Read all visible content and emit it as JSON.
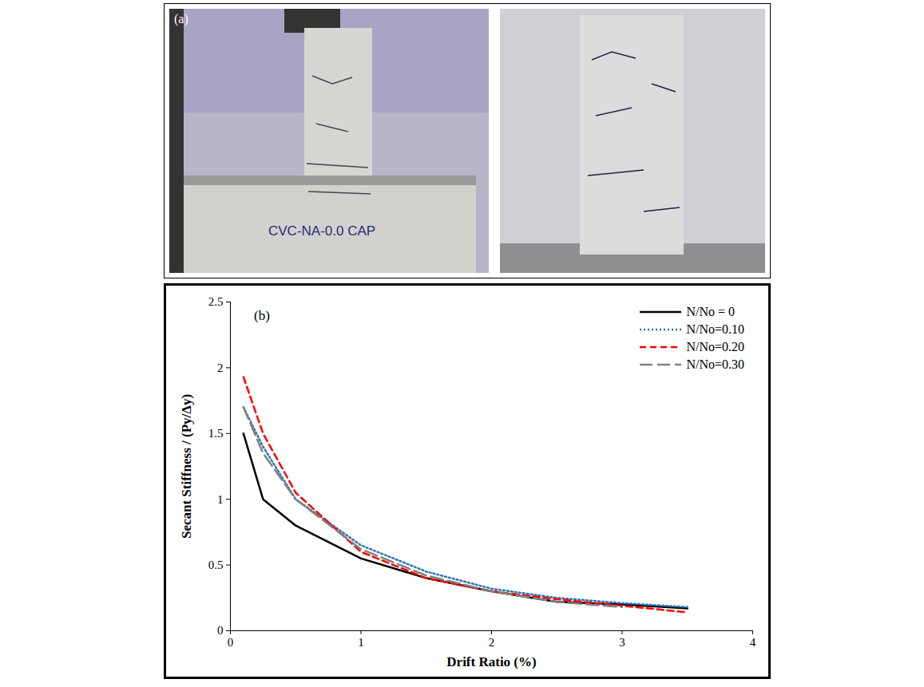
{
  "photos": {
    "label": "(a)",
    "specimen_label": "CVC-NA-0.0 CAP"
  },
  "chart_data": {
    "type": "line",
    "annotation": "(b)",
    "x_label": "Drift Ratio (%)",
    "y_label": "Secant Stiffness / (Py/Δy)",
    "x": [
      0.1,
      0.25,
      0.5,
      1,
      1.5,
      2,
      2.5,
      3,
      3.5
    ],
    "series": [
      {
        "name": "N/No = 0",
        "color": "#000000",
        "line_style": "solid",
        "values": [
          1.5,
          1.0,
          0.8,
          0.55,
          0.4,
          0.3,
          0.22,
          0.2,
          0.17
        ]
      },
      {
        "name": "N/No=0.10",
        "color": "#2e75b6",
        "line_style": "dotted",
        "values": [
          1.7,
          1.4,
          1.0,
          0.65,
          0.45,
          0.32,
          0.25,
          0.21,
          0.18
        ]
      },
      {
        "name": "N/No=0.20",
        "color": "#ff0000",
        "line_style": "dashed",
        "values": [
          1.93,
          1.5,
          1.05,
          0.6,
          0.4,
          0.3,
          0.24,
          0.19,
          0.14
        ]
      },
      {
        "name": "N/No=0.30",
        "color": "#808080",
        "line_style": "longdash",
        "values": [
          1.7,
          1.35,
          1.0,
          0.62,
          0.42,
          0.3,
          0.22,
          0.18,
          null
        ]
      }
    ],
    "xlim": [
      0,
      4
    ],
    "xticks": [
      0,
      1,
      2,
      3,
      4
    ],
    "ylim": [
      0,
      2.5
    ],
    "yticks": [
      0,
      0.5,
      1,
      1.5,
      2,
      2.5
    ],
    "grid": false,
    "legend": "top-right"
  }
}
